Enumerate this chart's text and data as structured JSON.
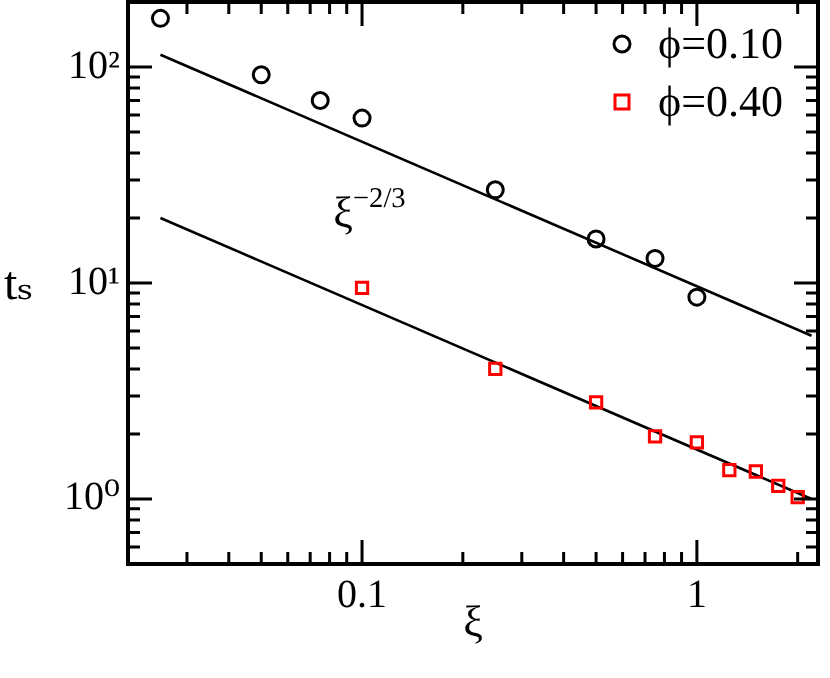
{
  "chart_data": {
    "type": "scatter",
    "xlabel": "ξ",
    "ylabel": "tₛ",
    "log": "xy",
    "legend": "top right",
    "grid": false,
    "xlim": [
      0.02,
      2.3
    ],
    "xticks": [
      {
        "value": 0.03,
        "label": null
      },
      {
        "value": 0.04,
        "label": null
      },
      {
        "value": 0.05,
        "label": null
      },
      {
        "value": 0.06,
        "label": null
      },
      {
        "value": 0.07,
        "label": null
      },
      {
        "value": 0.08,
        "label": null
      },
      {
        "value": 0.09,
        "label": null
      },
      0.1,
      {
        "value": 0.2,
        "label": null
      },
      {
        "value": 0.3,
        "label": null
      },
      {
        "value": 0.4,
        "label": null
      },
      {
        "value": 0.5,
        "label": null
      },
      {
        "value": 0.6,
        "label": null
      },
      {
        "value": 0.7,
        "label": null
      },
      {
        "value": 0.8,
        "label": null
      },
      {
        "value": 0.9,
        "label": null
      },
      1,
      {
        "value": 2,
        "label": null
      }
    ],
    "ylim": [
      0.5,
      200
    ],
    "yticks": [
      {
        "value": 0.5,
        "label": null
      },
      {
        "value": 0.6,
        "label": null
      },
      {
        "value": 0.7,
        "label": null
      },
      {
        "value": 0.8,
        "label": null
      },
      {
        "value": 0.9,
        "label": null
      },
      {
        "value": 1,
        "label": "10⁰"
      },
      {
        "value": 2,
        "label": null
      },
      {
        "value": 3,
        "label": null
      },
      {
        "value": 4,
        "label": null
      },
      {
        "value": 5,
        "label": null
      },
      {
        "value": 6,
        "label": null
      },
      {
        "value": 7,
        "label": null
      },
      {
        "value": 8,
        "label": null
      },
      {
        "value": 9,
        "label": null
      },
      {
        "value": 10,
        "label": "10¹"
      },
      {
        "value": 20,
        "label": null
      },
      {
        "value": 30,
        "label": null
      },
      {
        "value": 40,
        "label": null
      },
      {
        "value": 50,
        "label": null
      },
      {
        "value": 60,
        "label": null
      },
      {
        "value": 70,
        "label": null
      },
      {
        "value": 80,
        "label": null
      },
      {
        "value": 90,
        "label": null
      },
      {
        "value": 100,
        "label": "10²"
      },
      {
        "value": 200,
        "label": null
      }
    ],
    "annotations": [
      "ξ$^{−2/3}$"
    ],
    "series": [
      {
        "name": "ϕ=0.10",
        "type": "scatter",
        "marker": "circle",
        "color": "#000000",
        "x": [
          0.025,
          0.05,
          0.075,
          0.1,
          0.25,
          0.5,
          0.75,
          1
        ],
        "values": [
          168,
          92,
          70,
          58,
          27,
          16,
          13,
          8.6
        ]
      },
      {
        "name": "ϕ=0.40",
        "type": "scatter",
        "marker": "square",
        "color": "#ff0000",
        "x": [
          0.1,
          0.25,
          0.5,
          0.75,
          1,
          1.25,
          1.5,
          1.75,
          2
        ],
        "values": [
          9.5,
          4,
          2.8,
          1.95,
          1.83,
          1.36,
          1.34,
          1.15,
          1.02
        ]
      },
      {
        "type": "line",
        "marker": "none",
        "color": "#000000",
        "x": [
          0.025,
          2.2
        ],
        "values": [
          114,
          5.7
        ]
      },
      {
        "type": "line",
        "marker": "none",
        "color": "#000000",
        "x": [
          0.025,
          2.2
        ],
        "values": [
          20,
          1.0
        ]
      }
    ]
  }
}
